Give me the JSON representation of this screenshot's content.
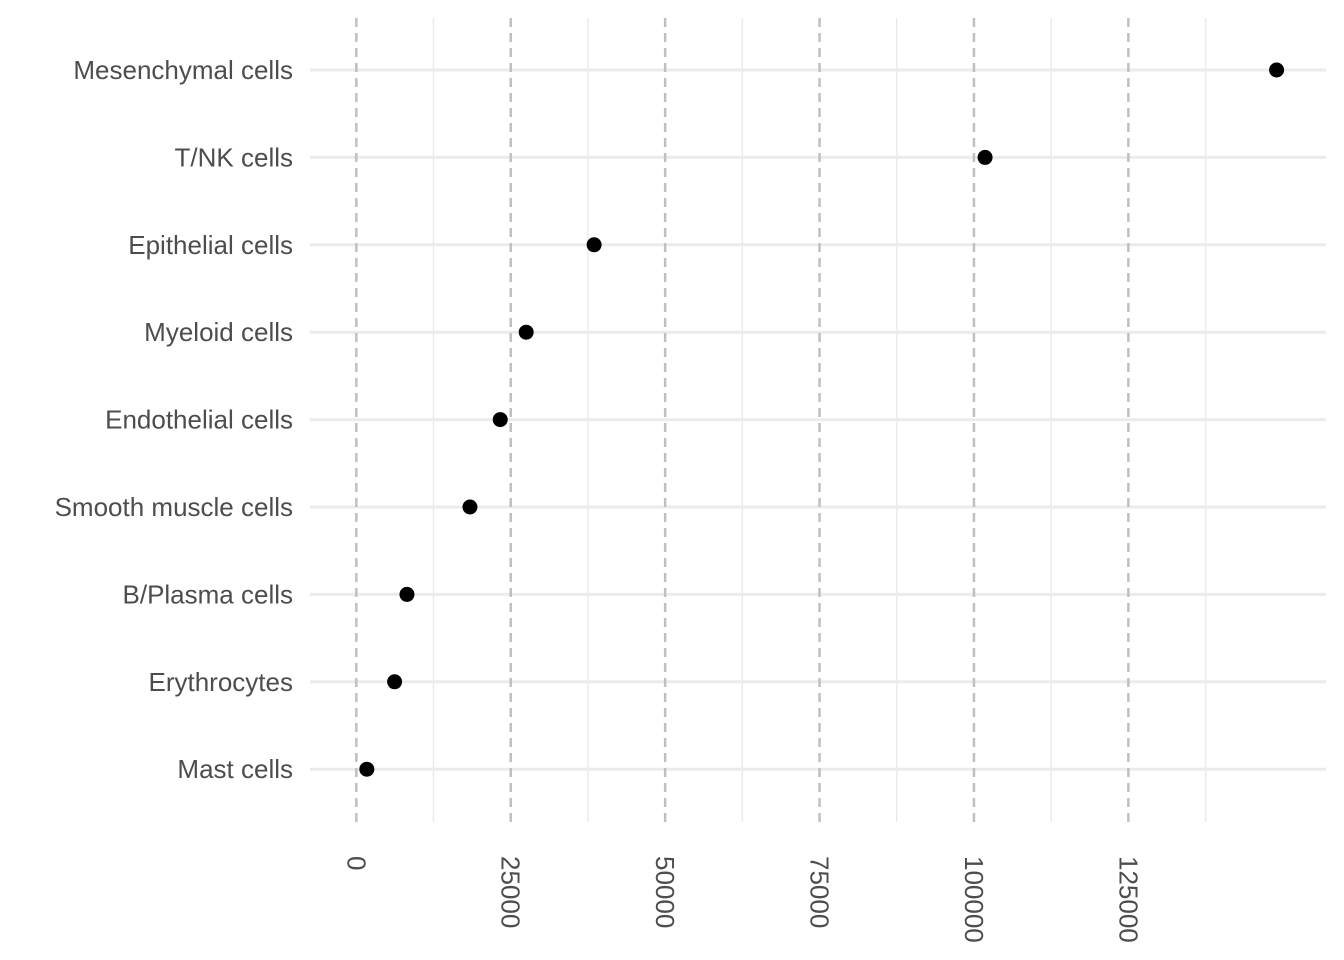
{
  "chart_data": {
    "type": "scatter",
    "title": "",
    "xlabel": "",
    "ylabel": "",
    "categories": [
      "Mesenchymal cells",
      "T/NK cells",
      "Epithelial cells",
      "Myeloid cells",
      "Endothelial cells",
      "Smooth muscle cells",
      "B/Plasma cells",
      "Erythrocytes",
      "Mast cells"
    ],
    "values": [
      149000,
      101800,
      38500,
      27500,
      23300,
      18400,
      8200,
      6200,
      1700
    ],
    "xlim": [
      -7500,
      157000
    ],
    "x_ticks": [
      0,
      25000,
      50000,
      75000,
      100000,
      125000
    ],
    "x_tick_labels": [
      "0",
      "25000",
      "50000",
      "75000",
      "100000",
      "125000"
    ],
    "x_tick_label_rotation": "90deg clockwise",
    "major_gridlines": "dashed vertical",
    "minor_gridlines": "solid light",
    "legend": "none",
    "point_color": "#000000",
    "grid_color": "#ebebeb",
    "dashed_grid_color": "#bfbfbf",
    "label_color": "#4d4d4d"
  }
}
